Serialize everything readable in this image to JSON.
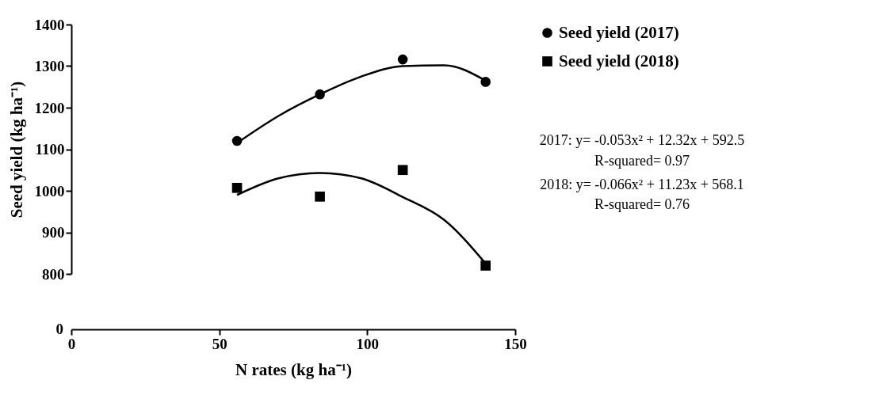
{
  "chart_data": {
    "type": "scatter",
    "ylabel": "Seed yield (kg ha⁻¹)",
    "xlabel": "N rates (kg ha⁻¹)",
    "xlim": [
      0,
      150
    ],
    "xticks": [
      0,
      50,
      100,
      150
    ],
    "ylim": [
      800,
      1400
    ],
    "yticks": [
      800,
      900,
      1000,
      1100,
      1200,
      1300,
      1400
    ],
    "grid": false,
    "legend": "right",
    "series": [
      {
        "name": "Seed yield (2017)",
        "color": "#000000",
        "marker": "circle",
        "x": [
          56,
          84,
          112,
          140
        ],
        "values": [
          1120,
          1232,
          1316,
          1262
        ]
      },
      {
        "name": "Seed yield (2018)",
        "color": "#000000",
        "marker": "square",
        "x": [
          56,
          84,
          112,
          140
        ],
        "values": [
          1007,
          986,
          1050,
          820
        ]
      },
      {
        "type": "line",
        "color": "#000000",
        "x": [
          56,
          70,
          84,
          98,
          112,
          126,
          140
        ],
        "values": [
          1115,
          1180,
          1232,
          1275,
          1300,
          1302,
          1265
        ]
      },
      {
        "type": "line",
        "color": "#000000",
        "x": [
          56,
          70,
          84,
          98,
          112,
          126,
          140
        ],
        "values": [
          990,
          1030,
          1043,
          1030,
          985,
          930,
          825
        ]
      }
    ],
    "annotations": [
      "2017: y= -0.053x² + 12.32x + 592.5",
      "R-squared= 0.97",
      "2018: y= -0.066x² + 11.23x + 568.1",
      "R-squared= 0.76",
      "0"
    ]
  }
}
